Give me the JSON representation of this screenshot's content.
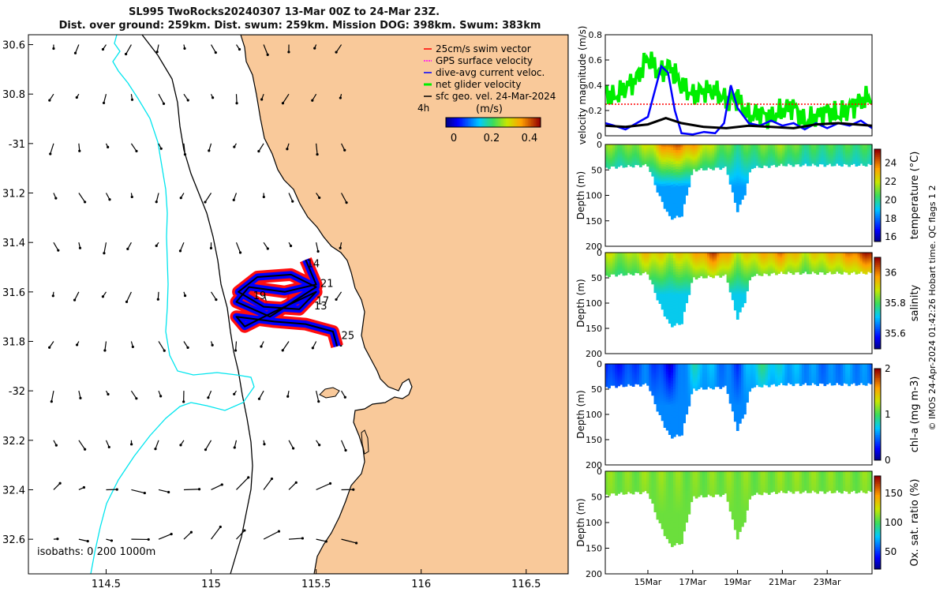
{
  "title": {
    "line1": "SL995 TwoRocks20240307 13-Mar 00Z to 24-Mar 23Z.",
    "line2": "Dist. over ground: 259km. Dist. swum: 259km. Mission DOG: 398km. Swum: 383km"
  },
  "colors": {
    "land": "#f9c99a",
    "coast": "#000000",
    "isobath200": "#000000",
    "isobath1000": "#00e5ee",
    "swim": "#ff0000",
    "gps": "#ff00ff",
    "dive": "#0000ff",
    "net": "#00ee00",
    "sfc": "#000000"
  },
  "chart_data": [
    {
      "type": "scatter",
      "name": "map",
      "xlabel": "",
      "ylabel": "",
      "xlim": [
        114.13,
        116.7
      ],
      "ylim": [
        -32.74,
        -30.56
      ],
      "xticks": [
        114.5,
        115,
        115.5,
        116,
        116.5
      ],
      "xtick_labels": [
        "114.5",
        "115",
        "115.5",
        "116",
        "116.5"
      ],
      "yticks": [
        -30.6,
        -30.8,
        -31,
        -31.2,
        -31.4,
        -31.6,
        -31.8,
        -32,
        -32.2,
        -32.4,
        -32.6
      ],
      "ytick_labels": [
        "30.6",
        "30.8",
        "-31",
        "31.2",
        "31.4",
        "31.6",
        "31.8",
        "-32",
        "32.2",
        "32.4",
        "32.6"
      ],
      "legend": [
        {
          "label": "25cm/s swim vector",
          "color": "#ff0000"
        },
        {
          "label": "GPS surface velocity",
          "color": "#ff00ff"
        },
        {
          "label": "dive-avg current veloc.",
          "color": "#0000ff"
        },
        {
          "label": "net glider velocity",
          "color": "#00ee00"
        },
        {
          "label": "sfc geo. vel. 24-Mar-2024",
          "color": "#000000"
        }
      ],
      "legend_extra": "4h",
      "colorbar": {
        "label": "(m/s)",
        "ticks": [
          "0",
          "0.2",
          "0.4"
        ],
        "range": [
          0,
          0.5
        ]
      },
      "isobath_text": "isobaths: 0   200  1000m",
      "track": {
        "lon": [
          115.45,
          115.5,
          115.35,
          115.18,
          115.12,
          115.28,
          115.5,
          115.38,
          115.22,
          115.13,
          115.25,
          115.42,
          115.5,
          115.3,
          115.16,
          115.12,
          115.3,
          115.45,
          115.58,
          115.6
        ],
        "lat": [
          -31.47,
          -31.57,
          -31.6,
          -31.58,
          -31.64,
          -31.7,
          -31.58,
          -31.53,
          -31.54,
          -31.6,
          -31.66,
          -31.67,
          -31.6,
          -31.68,
          -31.74,
          -31.7,
          -31.72,
          -31.73,
          -31.76,
          -31.82
        ]
      },
      "day_labels": [
        {
          "text": "14",
          "lon": 115.455,
          "lat": -31.5
        },
        {
          "text": "21",
          "lon": 115.52,
          "lat": -31.58
        },
        {
          "text": "19",
          "lon": 115.2,
          "lat": -31.63
        },
        {
          "text": "17",
          "lon": 115.5,
          "lat": -31.65
        },
        {
          "text": "13",
          "lon": 115.49,
          "lat": -31.67
        },
        {
          "text": "25",
          "lon": 115.62,
          "lat": -31.79
        }
      ],
      "vector_grid": {
        "lons": [
          114.25,
          114.37,
          114.5,
          114.62,
          114.75,
          114.87,
          115.0,
          115.12,
          115.25,
          115.37,
          115.5,
          115.62
        ],
        "lats": [
          -30.6,
          -30.8,
          -31.0,
          -31.2,
          -31.4,
          -31.6,
          -31.8,
          -32.0,
          -32.2,
          -32.4,
          -32.6
        ]
      }
    },
    {
      "type": "line",
      "name": "velocity",
      "ylabel": "velocity magnitude (m/s)",
      "xlim": [
        13.1,
        25.0
      ],
      "ylim": [
        0,
        0.8
      ],
      "yticks": [
        0,
        0.2,
        0.4,
        0.6,
        0.8
      ],
      "series": [
        {
          "name": "net glider velocity",
          "color": "#00ee00",
          "x": [
            13.1,
            13.5,
            14.0,
            14.5,
            15.0,
            15.5,
            16.0,
            16.5,
            17.0,
            17.5,
            18.0,
            18.5,
            19.0,
            19.5,
            20.0,
            20.5,
            21.0,
            21.5,
            22.0,
            22.5,
            23.0,
            23.5,
            24.0,
            24.5,
            25.0
          ],
          "values": [
            0.35,
            0.3,
            0.38,
            0.45,
            0.62,
            0.5,
            0.55,
            0.4,
            0.32,
            0.36,
            0.35,
            0.28,
            0.3,
            0.15,
            0.18,
            0.14,
            0.2,
            0.24,
            0.1,
            0.15,
            0.2,
            0.16,
            0.22,
            0.28,
            0.3
          ]
        },
        {
          "name": "25cm/s swim vector",
          "color": "#ff0000",
          "x": [
            13.1,
            25.0
          ],
          "values": [
            0.25,
            0.25
          ]
        },
        {
          "name": "dive-avg current veloc.",
          "color": "#0000ff",
          "x": [
            13.1,
            13.5,
            14.0,
            14.5,
            15.0,
            15.3,
            15.6,
            15.9,
            16.2,
            16.5,
            17.0,
            17.5,
            18.0,
            18.4,
            18.7,
            19.0,
            19.5,
            20.0,
            20.5,
            21.0,
            21.5,
            22.0,
            22.5,
            23.0,
            23.5,
            24.0,
            24.5,
            25.0
          ],
          "values": [
            0.1,
            0.08,
            0.05,
            0.1,
            0.15,
            0.35,
            0.55,
            0.5,
            0.2,
            0.02,
            0.01,
            0.03,
            0.02,
            0.1,
            0.4,
            0.22,
            0.1,
            0.08,
            0.12,
            0.08,
            0.1,
            0.05,
            0.1,
            0.06,
            0.1,
            0.08,
            0.12,
            0.06
          ]
        },
        {
          "name": "sfc geo. vel.",
          "color": "#000000",
          "x": [
            13.1,
            14.0,
            15.0,
            15.8,
            16.5,
            17.5,
            18.5,
            19.5,
            20.5,
            21.5,
            22.5,
            23.5,
            25.0
          ],
          "values": [
            0.08,
            0.07,
            0.09,
            0.14,
            0.1,
            0.07,
            0.06,
            0.08,
            0.07,
            0.06,
            0.09,
            0.1,
            0.08
          ]
        }
      ]
    },
    {
      "type": "heatmap",
      "name": "temperature",
      "ylabel": "Depth (m)",
      "cbar_label": "temperature (°C)",
      "ylim": [
        0,
        200
      ],
      "yticks": [
        0,
        50,
        100,
        150,
        200
      ],
      "crange": [
        15.5,
        25.5
      ],
      "cticks": [
        16,
        18,
        20,
        22,
        24
      ],
      "profile": {
        "x": [
          13.1,
          15.0,
          15.5,
          16.0,
          16.5,
          17.0,
          18.5,
          18.8,
          19.0,
          19.3,
          19.6,
          21.0,
          23.0,
          25.0
        ],
        "max_depth": [
          45,
          40,
          100,
          145,
          140,
          50,
          45,
          100,
          130,
          100,
          45,
          40,
          40,
          40
        ]
      },
      "surface": {
        "x": [
          13.1,
          14.0,
          15.0,
          16.0,
          17.0,
          18.0,
          19.0,
          20.0,
          21.0,
          22.0,
          23.0,
          24.0,
          25.0
        ],
        "values": [
          21.5,
          21.0,
          22.0,
          24.5,
          23.5,
          21.5,
          20.5,
          21.0,
          21.5,
          20.5,
          20.5,
          20.5,
          20.5
        ]
      },
      "deep_value": 18.5
    },
    {
      "type": "heatmap",
      "name": "salinity",
      "ylabel": "Depth (m)",
      "cbar_label": "salinity",
      "ylim": [
        0,
        200
      ],
      "yticks": [
        0,
        50,
        100,
        150,
        200
      ],
      "crange": [
        35.5,
        36.1
      ],
      "cticks": [
        35.6,
        35.8,
        36
      ],
      "profile": {
        "x": [
          13.1,
          15.0,
          15.5,
          16.0,
          16.5,
          17.0,
          18.5,
          18.8,
          19.0,
          19.3,
          19.6,
          21.0,
          23.0,
          25.0
        ],
        "max_depth": [
          45,
          40,
          100,
          145,
          140,
          50,
          45,
          100,
          130,
          100,
          45,
          40,
          40,
          40
        ]
      },
      "surface": {
        "x": [
          13.1,
          14.0,
          15.0,
          16.0,
          17.0,
          18.0,
          19.0,
          20.0,
          21.0,
          22.0,
          23.0,
          24.0,
          25.0
        ],
        "values": [
          35.9,
          35.85,
          35.95,
          35.9,
          35.95,
          36.05,
          35.9,
          35.95,
          36.0,
          35.9,
          35.95,
          36.0,
          36.1
        ]
      },
      "deep_value": 35.72
    },
    {
      "type": "heatmap",
      "name": "chl-a",
      "ylabel": "Depth (m)",
      "cbar_label": "chl-a (mg m-3)",
      "ylim": [
        0,
        200
      ],
      "yticks": [
        0,
        50,
        100,
        150,
        200
      ],
      "crange": [
        0,
        2
      ],
      "cticks": [
        0,
        1,
        2
      ],
      "profile": {
        "x": [
          13.1,
          15.0,
          15.5,
          16.0,
          16.5,
          17.0,
          18.5,
          18.8,
          19.0,
          19.3,
          19.6,
          21.0,
          23.0,
          25.0
        ],
        "max_depth": [
          45,
          40,
          100,
          145,
          140,
          50,
          45,
          100,
          130,
          100,
          45,
          40,
          40,
          40
        ]
      },
      "surface": {
        "x": [
          13.1,
          14.0,
          15.0,
          16.0,
          17.0,
          18.0,
          19.0,
          20.0,
          21.0,
          22.0,
          23.0,
          24.0,
          25.0
        ],
        "values": [
          0.3,
          0.35,
          0.5,
          0.2,
          0.8,
          0.6,
          0.4,
          0.9,
          0.7,
          0.6,
          0.5,
          0.6,
          0.5
        ]
      },
      "deep_value": 0.55
    },
    {
      "type": "heatmap",
      "name": "oxygen",
      "ylabel": "Depth (m)",
      "cbar_label": "Ox. sat. ratio (%)",
      "ylim": [
        0,
        200
      ],
      "yticks": [
        0,
        50,
        100,
        150,
        200
      ],
      "crange": [
        20,
        180
      ],
      "cticks": [
        50,
        100,
        150
      ],
      "profile": {
        "x": [
          13.1,
          15.0,
          15.5,
          16.0,
          16.5,
          17.0,
          18.5,
          18.8,
          19.0,
          19.3,
          19.6,
          21.0,
          23.0,
          25.0
        ],
        "max_depth": [
          45,
          40,
          100,
          145,
          140,
          50,
          45,
          100,
          130,
          100,
          45,
          40,
          40,
          40
        ]
      },
      "surface": {
        "x": [
          13.1,
          14.0,
          15.0,
          16.0,
          17.0,
          18.0,
          19.0,
          20.0,
          21.0,
          22.0,
          23.0,
          24.0,
          25.0
        ],
        "values": [
          112,
          110,
          113,
          112,
          110,
          111,
          112,
          110,
          113,
          112,
          111,
          110,
          112
        ]
      },
      "deep_value": 108
    }
  ],
  "time_axis": {
    "ticks": [
      15,
      17,
      19,
      21,
      23
    ],
    "labels": [
      "15Mar",
      "17Mar",
      "19Mar",
      "21Mar",
      "23Mar"
    ]
  },
  "side_label": "© IMOS 24-Apr-2024 01:42:26 Hobart time. QC flags 1  2"
}
